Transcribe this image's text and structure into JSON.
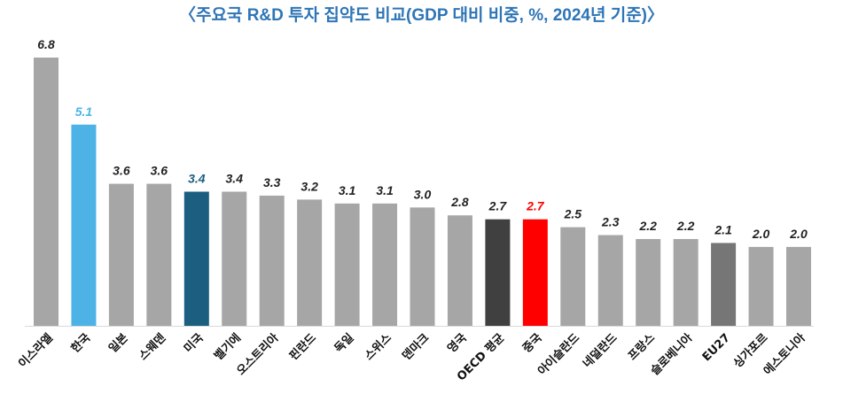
{
  "chart_data": {
    "type": "bar",
    "title": "〈주요국 R&D 투자 집약도 비교(GDP 대비 비중, %, 2024년 기준)〉",
    "xlabel": "",
    "ylabel": "",
    "ylim": [
      0,
      6.8
    ],
    "grid": false,
    "categories": [
      "이스라엘",
      "한국",
      "일본",
      "스웨덴",
      "미국",
      "벨기에",
      "오스트리아",
      "핀란드",
      "독일",
      "스위스",
      "덴마크",
      "영국",
      "OECD 평균",
      "중국",
      "아이슬란드",
      "네덜란드",
      "프랑스",
      "슬로베니아",
      "EU27",
      "싱가포르",
      "에스토니아"
    ],
    "values": [
      6.8,
      5.1,
      3.6,
      3.6,
      3.4,
      3.4,
      3.3,
      3.2,
      3.1,
      3.1,
      3.0,
      2.8,
      2.7,
      2.7,
      2.5,
      2.3,
      2.2,
      2.2,
      2.1,
      2.0,
      2.0
    ],
    "bar_colors": [
      "#a6a6a6",
      "#4db3e6",
      "#a6a6a6",
      "#a6a6a6",
      "#1b5e80",
      "#a6a6a6",
      "#a6a6a6",
      "#a6a6a6",
      "#a6a6a6",
      "#a6a6a6",
      "#a6a6a6",
      "#a6a6a6",
      "#404040",
      "#ff0000",
      "#a6a6a6",
      "#a6a6a6",
      "#a6a6a6",
      "#a6a6a6",
      "#767676",
      "#a6a6a6",
      "#a6a6a6"
    ],
    "label_colors": [
      "#222222",
      "#4db3e6",
      "#222222",
      "#222222",
      "#1b5e80",
      "#222222",
      "#222222",
      "#222222",
      "#222222",
      "#222222",
      "#222222",
      "#222222",
      "#222222",
      "#ff0000",
      "#222222",
      "#222222",
      "#222222",
      "#222222",
      "#222222",
      "#222222",
      "#222222"
    ]
  }
}
